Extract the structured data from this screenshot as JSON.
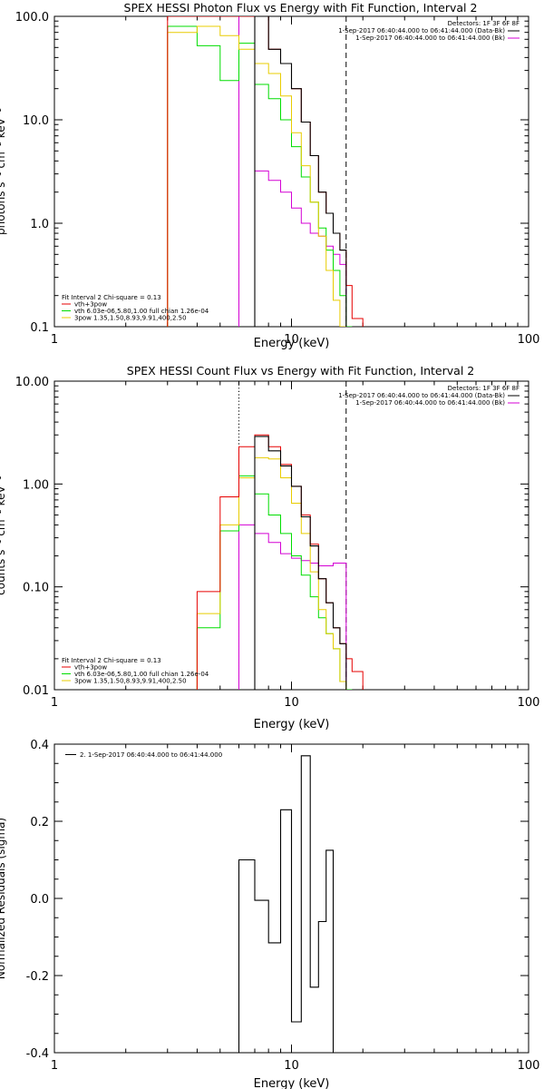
{
  "colors": {
    "total": "#e60000",
    "thermal": "#00dd00",
    "nonthermal": "#e8cc00",
    "background": "#d400d4",
    "data": "#000000"
  },
  "chart_data": [
    {
      "type": "line",
      "title": "SPEX HESSI Photon Flux vs Energy with Fit Function, Interval 2",
      "xlabel": "Energy (keV)",
      "ylabel": "photons s⁻¹ cm⁻² keV⁻¹",
      "xscale": "log",
      "yscale": "log",
      "xlim": [
        1,
        100
      ],
      "ylim": [
        0.1,
        100
      ],
      "xticks": [
        {
          "v": 1,
          "label": "1"
        },
        {
          "v": 10,
          "label": "10"
        },
        {
          "v": 100,
          "label": "100"
        }
      ],
      "yticks": [
        {
          "v": 0.1,
          "label": "0.1"
        },
        {
          "v": 1,
          "label": "1.0"
        },
        {
          "v": 10,
          "label": "10.0"
        },
        {
          "v": 100,
          "label": "100.0"
        }
      ],
      "vlines": [
        {
          "x": 6,
          "style": "dotted"
        },
        {
          "x": 17,
          "style": "dashed"
        }
      ],
      "header": [
        "Detectors: 1F 3F 6F 8F",
        "1-Sep-2017 06:40:44.000 to 06:41:44.000 (Data-Bk)",
        "1-Sep-2017 06:40:44.000 to 06:41:44.000 (Bk)"
      ],
      "fit_legend": [
        "Fit Interval 2   Chi-square = 0.13",
        "vth+3pow",
        "vth 6.03e-06,5.80,1.00  full chian 1.26e-04",
        "3pow 1.35,1.50,8.93,9.91,400,2.50"
      ],
      "edges": [
        3,
        4,
        5,
        6,
        7,
        8,
        9,
        10,
        11,
        12,
        13,
        14,
        15,
        16,
        17,
        18,
        20
      ],
      "series": [
        {
          "key": "data",
          "values": [
            null,
            null,
            null,
            null,
            100,
            48,
            35,
            20,
            9.5,
            4.5,
            2.0,
            1.25,
            0.8,
            0.55,
            null,
            null
          ]
        },
        {
          "key": "total",
          "values": [
            100,
            100,
            100,
            100,
            100,
            48,
            35,
            20,
            9.5,
            4.5,
            2.0,
            1.25,
            0.8,
            0.55,
            0.25,
            0.12
          ]
        },
        {
          "key": "thermal",
          "values": [
            80,
            52,
            24,
            55,
            22,
            16,
            10,
            5.5,
            2.8,
            1.6,
            0.9,
            0.55,
            0.35,
            0.2,
            0.1,
            null
          ]
        },
        {
          "key": "nonthermal",
          "values": [
            70,
            80,
            65,
            48,
            35,
            28,
            17,
            7.5,
            3.6,
            1.6,
            0.75,
            0.35,
            0.18,
            0.1,
            null,
            null
          ]
        },
        {
          "key": "background",
          "values": [
            null,
            null,
            null,
            100,
            3.2,
            2.6,
            2.0,
            1.4,
            1.0,
            0.8,
            0.75,
            0.6,
            0.5,
            0.4,
            null,
            null
          ]
        }
      ]
    },
    {
      "type": "line",
      "title": "SPEX HESSI Count Flux vs Energy with Fit Function, Interval 2",
      "xlabel": "Energy (keV)",
      "ylabel": "counts s⁻¹ cm⁻² keV⁻¹",
      "xscale": "log",
      "yscale": "log",
      "xlim": [
        1,
        100
      ],
      "ylim": [
        0.01,
        10
      ],
      "xticks": [
        {
          "v": 1,
          "label": "1"
        },
        {
          "v": 10,
          "label": "10"
        },
        {
          "v": 100,
          "label": "100"
        }
      ],
      "yticks": [
        {
          "v": 0.01,
          "label": "0.01"
        },
        {
          "v": 0.1,
          "label": "0.10"
        },
        {
          "v": 1,
          "label": "1.00"
        },
        {
          "v": 10,
          "label": "10.00"
        }
      ],
      "vlines": [
        {
          "x": 6,
          "style": "dotted"
        },
        {
          "x": 17,
          "style": "dashed"
        }
      ],
      "header": [
        "Detectors: 1F 3F 6F 8F",
        "1-Sep-2017 06:40:44.000 to 06:41:44.000 (Data-Bk)",
        "1-Sep-2017 06:40:44.000 to 06:41:44.000 (Bk)"
      ],
      "fit_legend": [
        "Fit Interval 2   Chi-square = 0.13",
        "vth+3pow",
        "vth 6.03e-06,5.80,1.00  full chian 1.26e-04",
        "3pow 1.35,1.50,8.93,9.91,400,2.50"
      ],
      "edges": [
        4,
        5,
        6,
        7,
        8,
        9,
        10,
        11,
        12,
        13,
        14,
        15,
        16,
        17,
        18,
        20
      ],
      "series": [
        {
          "key": "data",
          "values": [
            null,
            null,
            null,
            2.9,
            2.1,
            1.5,
            0.95,
            0.48,
            0.25,
            0.12,
            0.07,
            0.04,
            0.028,
            null,
            null
          ]
        },
        {
          "key": "total",
          "values": [
            0.09,
            0.75,
            2.3,
            3.0,
            2.3,
            1.55,
            0.95,
            0.5,
            0.26,
            0.12,
            0.07,
            0.04,
            0.028,
            0.02,
            0.015
          ]
        },
        {
          "key": "thermal",
          "values": [
            0.04,
            0.35,
            1.2,
            0.8,
            0.5,
            0.33,
            0.2,
            0.13,
            0.08,
            0.05,
            0.035,
            0.025,
            0.012,
            0.01,
            null
          ]
        },
        {
          "key": "nonthermal",
          "values": [
            0.055,
            0.4,
            1.15,
            1.8,
            1.75,
            1.15,
            0.65,
            0.33,
            0.14,
            0.06,
            0.035,
            0.025,
            0.012,
            null,
            null
          ]
        },
        {
          "key": "background",
          "values": [
            null,
            null,
            0.4,
            0.33,
            0.27,
            0.21,
            0.19,
            0.18,
            0.17,
            0.16,
            0.16,
            0.17,
            0.17,
            null,
            null
          ]
        }
      ]
    },
    {
      "type": "line",
      "title": "",
      "xlabel": "Energy (keV)",
      "ylabel": "Normalized Residuals (sigma)",
      "xscale": "log",
      "yscale": "linear",
      "xlim": [
        1,
        100
      ],
      "ylim": [
        -0.4,
        0.4
      ],
      "xticks": [
        {
          "v": 1,
          "label": "1"
        },
        {
          "v": 10,
          "label": "10"
        },
        {
          "v": 100,
          "label": "100"
        }
      ],
      "yticks": [
        {
          "v": -0.4,
          "label": "-0.4"
        },
        {
          "v": -0.2,
          "label": "-0.2"
        },
        {
          "v": 0,
          "label": "0.0"
        },
        {
          "v": 0.2,
          "label": "0.2"
        },
        {
          "v": 0.4,
          "label": "0.4"
        }
      ],
      "legend": "2. 1-Sep-2017 06:40:44.000 to 06:41:44.000",
      "edges": [
        6,
        7,
        8,
        9,
        10,
        11,
        12,
        13,
        14,
        15,
        16,
        17
      ],
      "series": [
        {
          "key": "data",
          "values": [
            0.1,
            -0.005,
            -0.115,
            0.23,
            -0.32,
            0.37,
            -0.23,
            -0.06,
            0.125,
            null,
            null
          ]
        }
      ]
    }
  ]
}
